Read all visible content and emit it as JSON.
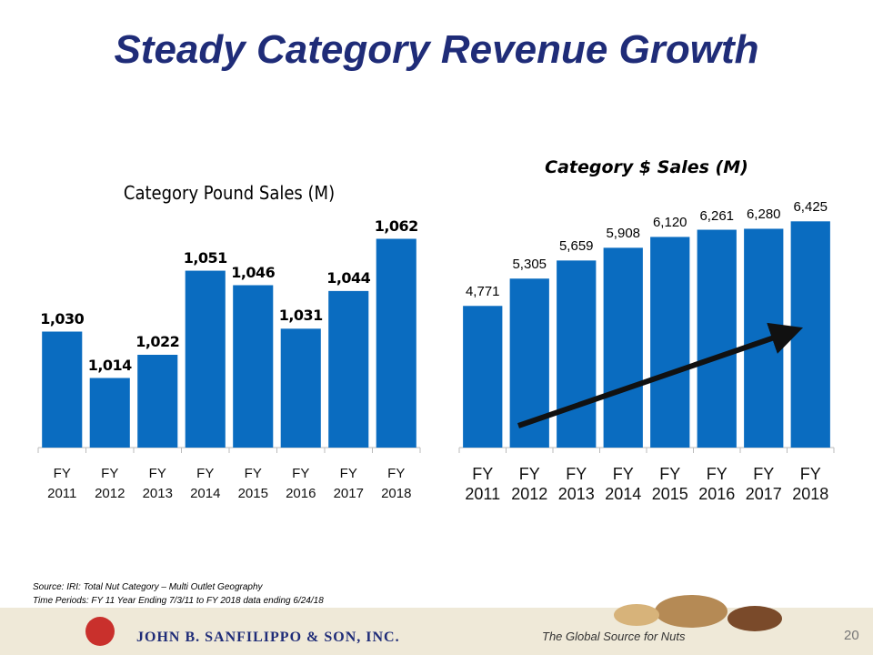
{
  "title": "Steady Category Revenue Growth",
  "chart_data": [
    {
      "type": "bar",
      "title": "Category Pound Sales (M)",
      "categories": [
        "FY 2011",
        "FY 2012",
        "FY 2013",
        "FY 2014",
        "FY 2015",
        "FY 2016",
        "FY 2017",
        "FY 2018"
      ],
      "values": [
        1030,
        1014,
        1022,
        1051,
        1046,
        1031,
        1044,
        1062
      ],
      "value_labels": [
        "1,030",
        "1,014",
        "1,022",
        "1,051",
        "1,046",
        "1,031",
        "1,044",
        "1,062"
      ],
      "color": "#0a6cc0",
      "ylim": [
        990,
        1070
      ]
    },
    {
      "type": "bar",
      "title": "Category $ Sales (M)",
      "categories": [
        "FY 2011",
        "FY 2012",
        "FY 2013",
        "FY 2014",
        "FY 2015",
        "FY 2016",
        "FY 2017",
        "FY 2018"
      ],
      "values": [
        4771,
        5305,
        5659,
        5908,
        6120,
        6261,
        6280,
        6425
      ],
      "value_labels": [
        "4,771",
        "5,305",
        "5,659",
        "5,908",
        "6,120",
        "6,261",
        "6,280",
        "6,425"
      ],
      "color": "#0a6cc0",
      "ylim": [
        2000,
        7000
      ]
    }
  ],
  "source": {
    "line1": "Source: IRI: Total Nut Category – Multi Outlet Geography",
    "line2": "Time Periods: FY 11 Year Ending 7/3/11 to FY 2018  data ending 6/24/18"
  },
  "footer": {
    "company": "JOHN B. SANFILIPPO & SON, INC.",
    "tagline": "The Global Source for Nuts",
    "page": "20"
  }
}
